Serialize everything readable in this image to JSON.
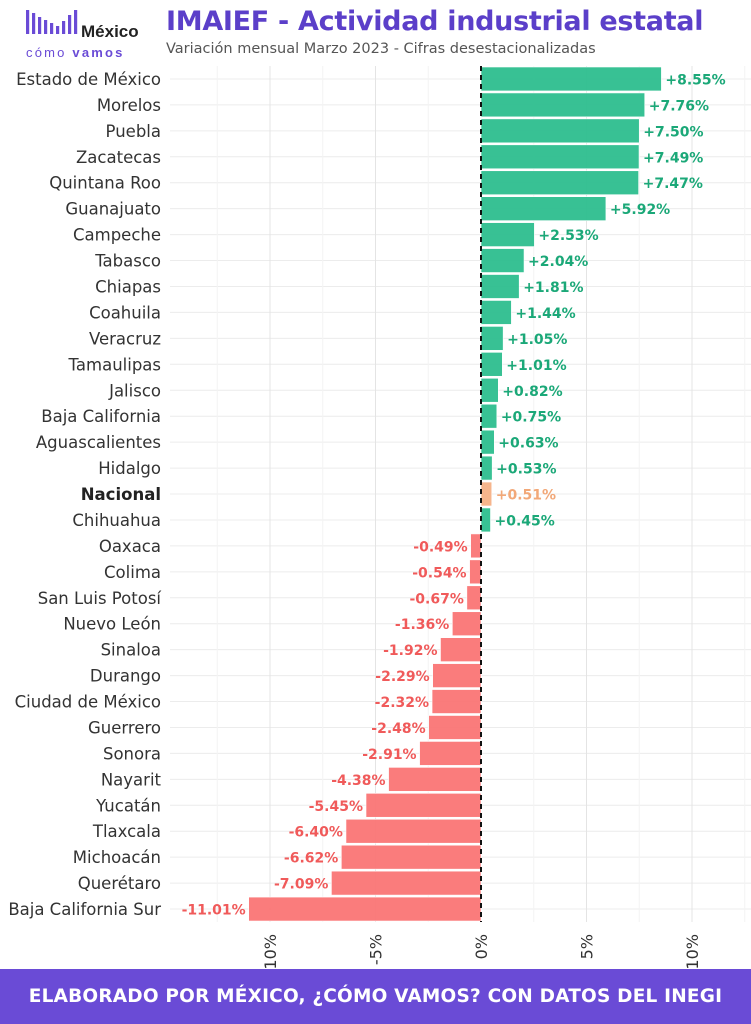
{
  "header": {
    "title": "IMAIEF - Actividad industrial estatal",
    "subtitle": "Variación mensual Marzo 2023 - Cifras desestacionalizadas",
    "logo_top": "México",
    "logo_bottom_a": "cómo",
    "logo_bottom_b": "vamos"
  },
  "footer": {
    "text": "ELABORADO POR MÉXICO, ¿CÓMO VAMOS? CON DATOS DEL INEGI"
  },
  "colors": {
    "positive": "#2dbe8e",
    "negative": "#fa7575",
    "national": "#f6b186",
    "positive_text": "#1ba878",
    "negative_text": "#f05a5a",
    "national_text": "#f2a878",
    "title": "#5b3fc9",
    "footer_bg": "#6a4bd6"
  },
  "chart_data": {
    "type": "bar",
    "orientation": "horizontal",
    "title": "IMAIEF - Actividad industrial estatal",
    "subtitle": "Variación mensual Marzo 2023 - Cifras desestacionalizadas",
    "xlabel": "",
    "ylabel": "",
    "xlim": [
      -12.5,
      12.5
    ],
    "x_ticks": [
      {
        "value": -10,
        "label": "-10%"
      },
      {
        "value": -5,
        "label": "-5%"
      },
      {
        "value": 0,
        "label": "0%"
      },
      {
        "value": 5,
        "label": "5%"
      },
      {
        "value": 10,
        "label": "10%"
      }
    ],
    "grid": true,
    "highlight": "Nacional",
    "categories": [
      "Estado de México",
      "Morelos",
      "Puebla",
      "Zacatecas",
      "Quintana Roo",
      "Guanajuato",
      "Campeche",
      "Tabasco",
      "Chiapas",
      "Coahuila",
      "Veracruz",
      "Tamaulipas",
      "Jalisco",
      "Baja California",
      "Aguascalientes",
      "Hidalgo",
      "Nacional",
      "Chihuahua",
      "Oaxaca",
      "Colima",
      "San Luis Potosí",
      "Nuevo León",
      "Sinaloa",
      "Durango",
      "Ciudad de México",
      "Guerrero",
      "Sonora",
      "Nayarit",
      "Yucatán",
      "Tlaxcala",
      "Michoacán",
      "Querétaro",
      "Baja California Sur"
    ],
    "values": [
      8.55,
      7.76,
      7.5,
      7.49,
      7.47,
      5.92,
      2.53,
      2.04,
      1.81,
      1.44,
      1.05,
      1.01,
      0.82,
      0.75,
      0.63,
      0.53,
      0.51,
      0.45,
      -0.49,
      -0.54,
      -0.67,
      -1.36,
      -1.92,
      -2.29,
      -2.32,
      -2.48,
      -2.91,
      -4.38,
      -5.45,
      -6.4,
      -6.62,
      -7.09,
      -11.01
    ],
    "value_labels": [
      "+8.55%",
      "+7.76%",
      "+7.50%",
      "+7.49%",
      "+7.47%",
      "+5.92%",
      "+2.53%",
      "+2.04%",
      "+1.81%",
      "+1.44%",
      "+1.05%",
      "+1.01%",
      "+0.82%",
      "+0.75%",
      "+0.63%",
      "+0.53%",
      "+0.51%",
      "+0.45%",
      "-0.49%",
      "-0.54%",
      "-0.67%",
      "-1.36%",
      "-1.92%",
      "-2.29%",
      "-2.32%",
      "-2.48%",
      "-2.91%",
      "-4.38%",
      "-5.45%",
      "-6.40%",
      "-6.62%",
      "-7.09%",
      "-11.01%"
    ]
  }
}
